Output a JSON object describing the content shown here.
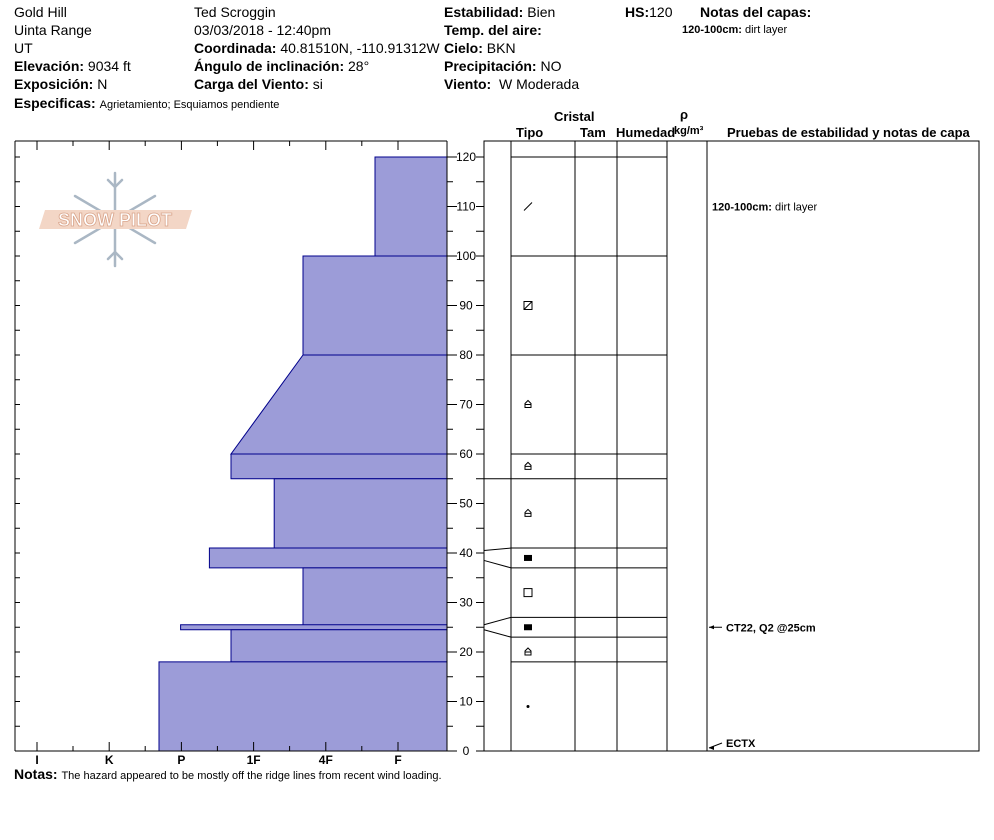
{
  "header": {
    "location": "Gold Hill",
    "range": "Uinta Range",
    "state": "UT",
    "elevation_label": "Elevación:",
    "elevation": "9034 ft",
    "aspect_label": "Exposición:",
    "aspect": "N",
    "specifics_label": "Especificas:",
    "specifics": "Agrietamiento; Esquiamos pendiente",
    "observer": "Ted Scroggin",
    "datetime": "03/03/2018 - 12:40pm",
    "coord_label": "Coordinada:",
    "coord": "40.81510N, -110.91312W",
    "slope_label": "Ángulo de inclinación:",
    "slope": "28°",
    "wind_load_label": "Carga del Viento:",
    "wind_load": "si",
    "stability_label": "Estabilidad:",
    "stability": "Bien",
    "air_temp_label": "Temp. del aire:",
    "sky_label": "Cielo:",
    "sky": "BKN",
    "precip_label": "Precipitación:",
    "precip": "NO",
    "wind_label": "Viento:",
    "wind": "W Moderada",
    "hs_label": "HS:",
    "hs": "120",
    "layer_notes_label": "Notas del capas:",
    "layer_note_range": "120-100cm:",
    "layer_note_text": "dirt layer"
  },
  "logo": {
    "text": "SNOW PILOT"
  },
  "columns": {
    "crystal": "Cristal",
    "type": "Tipo",
    "size": "Tam",
    "moisture": "Humedad",
    "rho": "ρ",
    "density_unit": "kg/m³",
    "tests": "Pruebas de estabilidad y notas de capa"
  },
  "notes": {
    "label": "Notas:",
    "text": "The hazard appeared to be mostly off the ridge lines from recent wind loading."
  },
  "chart_data": {
    "type": "bar",
    "title": "",
    "xlabel": "",
    "ylabel": "",
    "hardness_scale": [
      "I",
      "K",
      "P",
      "1F",
      "4F",
      "F"
    ],
    "height_axis": {
      "min": 0,
      "max": 120,
      "step": 10
    },
    "layers": [
      {
        "bottom": 100,
        "top": 120,
        "hardness_idx_bottom": 1.0,
        "hardness_idx_top": 1.0,
        "grain": "dirt"
      },
      {
        "bottom": 80,
        "top": 100,
        "hardness_idx_bottom": 2.0,
        "hardness_idx_top": 2.0,
        "grain": "facets-rounding"
      },
      {
        "bottom": 60,
        "top": 80,
        "hardness_idx_bottom": 3.0,
        "hardness_idx_top": 2.0,
        "grain": "depth-hoar"
      },
      {
        "bottom": 55,
        "top": 60,
        "hardness_idx_bottom": 3.0,
        "hardness_idx_top": 3.0,
        "grain": "depth-hoar"
      },
      {
        "bottom": 41,
        "top": 55,
        "hardness_idx_bottom": 2.4,
        "hardness_idx_top": 2.4,
        "grain": "depth-hoar"
      },
      {
        "bottom": 37,
        "top": 41,
        "hardness_idx_bottom": 3.3,
        "hardness_idx_top": 3.3,
        "grain": "ice"
      },
      {
        "bottom": 25,
        "top": 37,
        "hardness_idx_bottom": 2.0,
        "hardness_idx_top": 2.0,
        "grain": "facets"
      },
      {
        "bottom": 24.5,
        "top": 25.5,
        "hardness_idx_bottom": 3.7,
        "hardness_idx_top": 3.7,
        "grain": "ice"
      },
      {
        "bottom": 18,
        "top": 24.5,
        "hardness_idx_bottom": 3.0,
        "hardness_idx_top": 3.0,
        "grain": "depth-hoar"
      },
      {
        "bottom": 0,
        "top": 18,
        "hardness_idx_bottom": 4.0,
        "hardness_idx_top": 4.0,
        "grain": "precip-particle"
      }
    ],
    "layer_boundaries": [
      120,
      100,
      80,
      60,
      55,
      41,
      37,
      27,
      23,
      18
    ],
    "grain_symbols": [
      {
        "height": 110,
        "symbol": "slash"
      },
      {
        "height": 90,
        "symbol": "box-x"
      },
      {
        "height": 70,
        "symbol": "dh"
      },
      {
        "height": 57.5,
        "symbol": "dh"
      },
      {
        "height": 48,
        "symbol": "dh"
      },
      {
        "height": 39,
        "symbol": "ice"
      },
      {
        "height": 32,
        "symbol": "square"
      },
      {
        "height": 25,
        "symbol": "ice"
      },
      {
        "height": 20,
        "symbol": "dh"
      },
      {
        "height": 9,
        "symbol": "dot"
      }
    ],
    "tests": [
      {
        "height": 25,
        "label": "CT22, Q2 @25cm"
      },
      {
        "height": 0,
        "label": "ECTX"
      }
    ]
  }
}
